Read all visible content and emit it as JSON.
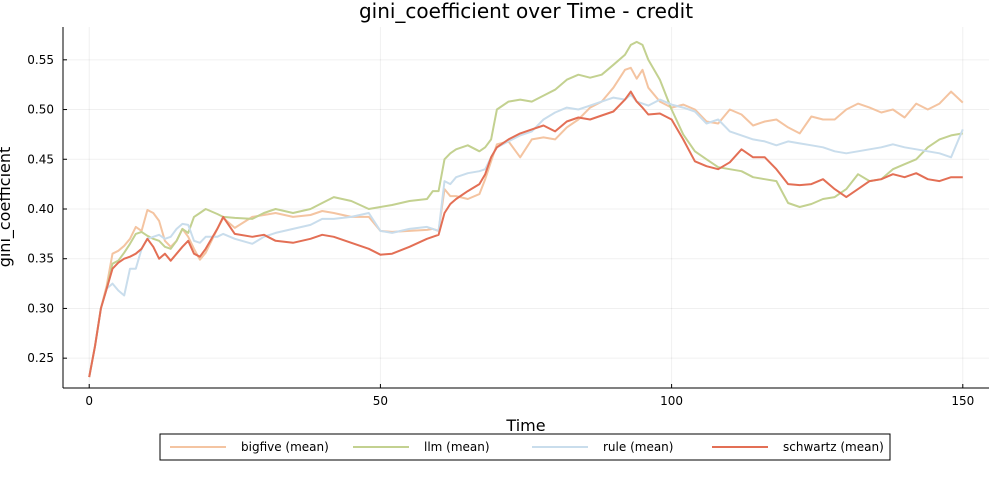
{
  "chart_data": {
    "type": "line",
    "title": "gini_coefficient over Time - credit",
    "xlabel": "Time",
    "ylabel": "gini_coefficient",
    "xlim": [
      -4.5,
      154.5
    ],
    "ylim": [
      0.22,
      0.583
    ],
    "xticks": [
      0,
      50,
      100,
      150
    ],
    "yticks": [
      0.25,
      0.3,
      0.35,
      0.4,
      0.45,
      0.5,
      0.55
    ],
    "grid": true,
    "legend_position": "bottom",
    "keypoints_x": [
      0,
      1,
      2,
      3,
      4,
      5,
      6,
      7,
      8,
      9,
      10,
      11,
      12,
      13,
      14,
      15,
      16,
      17,
      18,
      19,
      20,
      22,
      23,
      25,
      28,
      30,
      32,
      35,
      38,
      40,
      42,
      45,
      48,
      50,
      52,
      55,
      58,
      59,
      60,
      61,
      62,
      63,
      65,
      67,
      68,
      69,
      70,
      72,
      74,
      76,
      78,
      80,
      82,
      84,
      86,
      88,
      90,
      92,
      93,
      94,
      95,
      96,
      98,
      100,
      102,
      104,
      106,
      108,
      110,
      112,
      114,
      116,
      118,
      120,
      122,
      124,
      126,
      128,
      130,
      132,
      134,
      136,
      138,
      140,
      142,
      144,
      146,
      148,
      150
    ],
    "series": [
      {
        "name": "bigfive (mean)",
        "color": "#f4c4a1",
        "values": [
          0.231,
          0.262,
          0.3,
          0.323,
          0.355,
          0.358,
          0.363,
          0.37,
          0.382,
          0.378,
          0.399,
          0.396,
          0.388,
          0.368,
          0.362,
          0.368,
          0.38,
          0.372,
          0.36,
          0.349,
          0.356,
          0.38,
          0.391,
          0.381,
          0.392,
          0.394,
          0.396,
          0.392,
          0.394,
          0.398,
          0.396,
          0.392,
          0.392,
          0.378,
          0.377,
          0.378,
          0.379,
          0.38,
          0.378,
          0.42,
          0.413,
          0.413,
          0.41,
          0.415,
          0.43,
          0.448,
          0.465,
          0.468,
          0.452,
          0.47,
          0.472,
          0.47,
          0.482,
          0.49,
          0.502,
          0.508,
          0.522,
          0.54,
          0.542,
          0.531,
          0.54,
          0.522,
          0.508,
          0.502,
          0.505,
          0.5,
          0.488,
          0.486,
          0.5,
          0.495,
          0.484,
          0.488,
          0.49,
          0.482,
          0.476,
          0.493,
          0.49,
          0.49,
          0.5,
          0.506,
          0.502,
          0.497,
          0.5,
          0.492,
          0.506,
          0.5,
          0.506,
          0.518,
          0.507
        ]
      },
      {
        "name": "llm (mean)",
        "color": "#c3d190",
        "values": [
          0.231,
          0.262,
          0.3,
          0.32,
          0.345,
          0.348,
          0.356,
          0.365,
          0.375,
          0.377,
          0.373,
          0.37,
          0.368,
          0.362,
          0.36,
          0.368,
          0.38,
          0.376,
          0.392,
          0.396,
          0.4,
          0.395,
          0.392,
          0.391,
          0.39,
          0.396,
          0.4,
          0.396,
          0.4,
          0.406,
          0.412,
          0.408,
          0.4,
          0.402,
          0.404,
          0.408,
          0.41,
          0.418,
          0.418,
          0.45,
          0.456,
          0.46,
          0.464,
          0.458,
          0.462,
          0.47,
          0.5,
          0.508,
          0.51,
          0.508,
          0.514,
          0.52,
          0.53,
          0.535,
          0.532,
          0.535,
          0.545,
          0.555,
          0.565,
          0.568,
          0.565,
          0.55,
          0.53,
          0.5,
          0.475,
          0.458,
          0.45,
          0.442,
          0.44,
          0.438,
          0.432,
          0.43,
          0.428,
          0.406,
          0.402,
          0.405,
          0.41,
          0.412,
          0.42,
          0.435,
          0.428,
          0.43,
          0.44,
          0.445,
          0.45,
          0.462,
          0.47,
          0.474,
          0.476
        ]
      },
      {
        "name": "rule (mean)",
        "color": "#c9ddec",
        "values": [
          0.231,
          0.262,
          0.3,
          0.32,
          0.325,
          0.318,
          0.313,
          0.34,
          0.34,
          0.36,
          0.37,
          0.372,
          0.374,
          0.37,
          0.372,
          0.38,
          0.385,
          0.384,
          0.368,
          0.366,
          0.372,
          0.372,
          0.375,
          0.37,
          0.365,
          0.372,
          0.376,
          0.38,
          0.384,
          0.39,
          0.39,
          0.392,
          0.396,
          0.378,
          0.376,
          0.38,
          0.382,
          0.38,
          0.378,
          0.428,
          0.425,
          0.432,
          0.436,
          0.438,
          0.44,
          0.452,
          0.462,
          0.468,
          0.474,
          0.478,
          0.49,
          0.497,
          0.502,
          0.5,
          0.504,
          0.508,
          0.512,
          0.51,
          0.515,
          0.508,
          0.506,
          0.504,
          0.51,
          0.505,
          0.502,
          0.498,
          0.486,
          0.49,
          0.478,
          0.474,
          0.47,
          0.468,
          0.464,
          0.468,
          0.466,
          0.464,
          0.462,
          0.458,
          0.456,
          0.458,
          0.46,
          0.462,
          0.465,
          0.462,
          0.46,
          0.458,
          0.456,
          0.452,
          0.48
        ]
      },
      {
        "name": "schwartz (mean)",
        "color": "#e36f55",
        "values": [
          0.231,
          0.262,
          0.3,
          0.32,
          0.34,
          0.346,
          0.35,
          0.352,
          0.355,
          0.36,
          0.37,
          0.362,
          0.35,
          0.355,
          0.348,
          0.355,
          0.362,
          0.368,
          0.355,
          0.352,
          0.36,
          0.38,
          0.392,
          0.375,
          0.372,
          0.374,
          0.368,
          0.366,
          0.37,
          0.374,
          0.372,
          0.366,
          0.36,
          0.354,
          0.355,
          0.362,
          0.37,
          0.372,
          0.374,
          0.396,
          0.405,
          0.41,
          0.418,
          0.425,
          0.435,
          0.452,
          0.462,
          0.47,
          0.476,
          0.48,
          0.484,
          0.478,
          0.488,
          0.492,
          0.49,
          0.494,
          0.498,
          0.51,
          0.518,
          0.508,
          0.502,
          0.495,
          0.496,
          0.49,
          0.47,
          0.448,
          0.443,
          0.44,
          0.447,
          0.46,
          0.452,
          0.452,
          0.44,
          0.425,
          0.424,
          0.425,
          0.43,
          0.42,
          0.412,
          0.42,
          0.428,
          0.43,
          0.435,
          0.432,
          0.436,
          0.43,
          0.428,
          0.432,
          0.432
        ]
      }
    ]
  }
}
